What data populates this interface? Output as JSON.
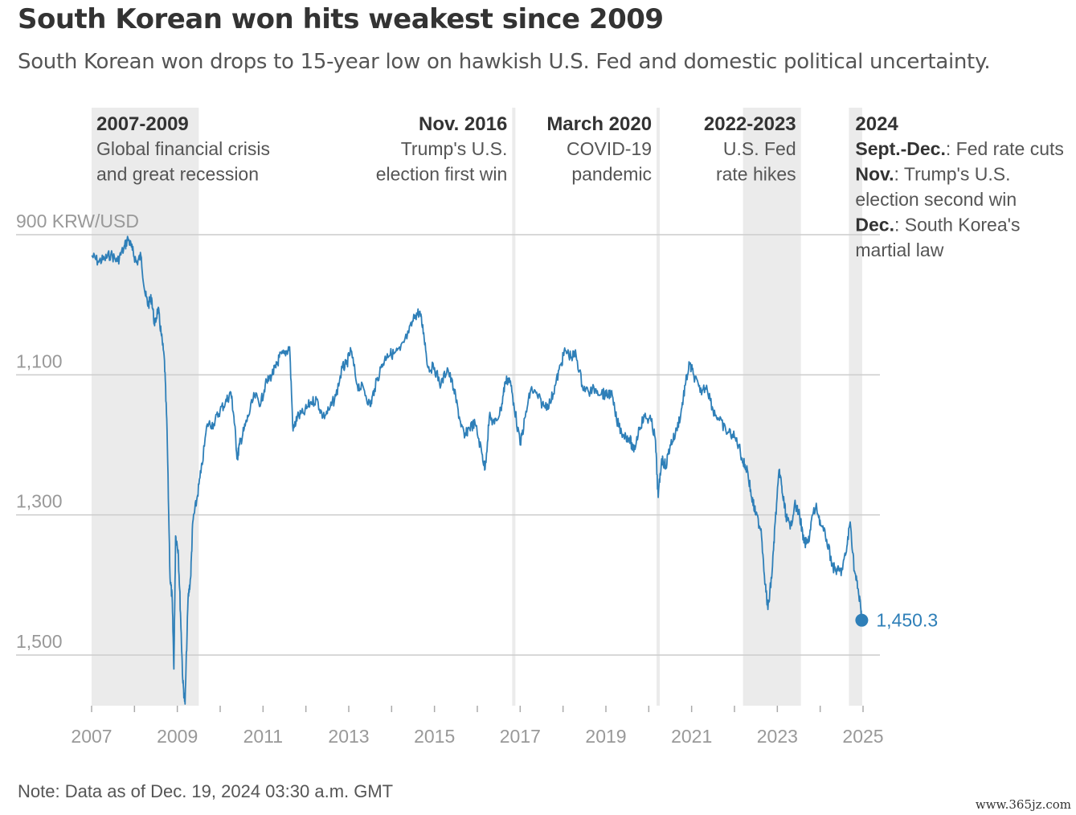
{
  "header": {
    "title": "South Korean won hits weakest since 2009",
    "subtitle": "South Korean won drops to 15-year low on hawkish U.S. Fed and domestic political uncertainty."
  },
  "footer": {
    "note": "Note: Data as of Dec. 19, 2024 03:30 a.m. GMT",
    "watermark": "www.365jz.com"
  },
  "colors": {
    "line": "#2e7fb8",
    "band": "#ebebeb",
    "grid": "#cccccc",
    "axis_text": "#999999",
    "annotation_heading": "#333333",
    "annotation_text": "#555555"
  },
  "chart_data": {
    "type": "line",
    "title": "South Korean won hits weakest since 2009",
    "subtitle": "South Korean won drops to 15-year low on hawkish U.S. Fed and domestic political uncertainty.",
    "ylabel": "KRW/USD",
    "y_axis_inverted": true,
    "ylim": [
      1560,
      860
    ],
    "xlim": [
      2007.0,
      2025.0
    ],
    "y_ticks": [
      {
        "value": 900,
        "label": "900 KRW/USD"
      },
      {
        "value": 1100,
        "label": "1,100"
      },
      {
        "value": 1300,
        "label": "1,300"
      },
      {
        "value": 1500,
        "label": "1,500"
      }
    ],
    "x_ticks": [
      2007,
      2009,
      2011,
      2013,
      2015,
      2017,
      2019,
      2021,
      2023,
      2025
    ],
    "grid": "horizontal",
    "last_value_label": "1,450.3",
    "series": [
      {
        "points": [
          [
            2007.0,
            930
          ],
          [
            2007.15,
            938
          ],
          [
            2007.3,
            935
          ],
          [
            2007.45,
            928
          ],
          [
            2007.6,
            938
          ],
          [
            2007.75,
            920
          ],
          [
            2007.85,
            905
          ],
          [
            2007.95,
            922
          ],
          [
            2008.05,
            940
          ],
          [
            2008.15,
            930
          ],
          [
            2008.25,
            985
          ],
          [
            2008.32,
            1000
          ],
          [
            2008.4,
            990
          ],
          [
            2008.47,
            1030
          ],
          [
            2008.55,
            1005
          ],
          [
            2008.62,
            1040
          ],
          [
            2008.7,
            1080
          ],
          [
            2008.76,
            1180
          ],
          [
            2008.83,
            1390
          ],
          [
            2008.88,
            1420
          ],
          [
            2008.92,
            1520
          ],
          [
            2008.96,
            1330
          ],
          [
            2009.02,
            1350
          ],
          [
            2009.08,
            1450
          ],
          [
            2009.13,
            1540
          ],
          [
            2009.18,
            1570
          ],
          [
            2009.25,
            1420
          ],
          [
            2009.31,
            1390
          ],
          [
            2009.36,
            1310
          ],
          [
            2009.45,
            1280
          ],
          [
            2009.55,
            1240
          ],
          [
            2009.7,
            1170
          ],
          [
            2009.85,
            1170
          ],
          [
            2010.0,
            1150
          ],
          [
            2010.12,
            1140
          ],
          [
            2010.25,
            1125
          ],
          [
            2010.32,
            1160
          ],
          [
            2010.4,
            1220
          ],
          [
            2010.45,
            1200
          ],
          [
            2010.55,
            1180
          ],
          [
            2010.65,
            1160
          ],
          [
            2010.8,
            1130
          ],
          [
            2010.95,
            1140
          ],
          [
            2011.05,
            1115
          ],
          [
            2011.2,
            1100
          ],
          [
            2011.3,
            1090
          ],
          [
            2011.38,
            1075
          ],
          [
            2011.5,
            1070
          ],
          [
            2011.62,
            1060
          ],
          [
            2011.7,
            1180
          ],
          [
            2011.8,
            1160
          ],
          [
            2011.95,
            1155
          ],
          [
            2012.1,
            1140
          ],
          [
            2012.25,
            1135
          ],
          [
            2012.4,
            1160
          ],
          [
            2012.55,
            1150
          ],
          [
            2012.7,
            1130
          ],
          [
            2012.85,
            1090
          ],
          [
            2012.95,
            1085
          ],
          [
            2013.05,
            1065
          ],
          [
            2013.2,
            1115
          ],
          [
            2013.35,
            1120
          ],
          [
            2013.5,
            1145
          ],
          [
            2013.6,
            1120
          ],
          [
            2013.75,
            1090
          ],
          [
            2013.9,
            1070
          ],
          [
            2014.05,
            1070
          ],
          [
            2014.2,
            1065
          ],
          [
            2014.4,
            1040
          ],
          [
            2014.55,
            1015
          ],
          [
            2014.65,
            1010
          ],
          [
            2014.75,
            1040
          ],
          [
            2014.85,
            1090
          ],
          [
            2015.0,
            1090
          ],
          [
            2015.15,
            1115
          ],
          [
            2015.3,
            1090
          ],
          [
            2015.45,
            1120
          ],
          [
            2015.58,
            1160
          ],
          [
            2015.7,
            1190
          ],
          [
            2015.8,
            1175
          ],
          [
            2015.95,
            1170
          ],
          [
            2016.1,
            1210
          ],
          [
            2016.18,
            1235
          ],
          [
            2016.28,
            1160
          ],
          [
            2016.4,
            1170
          ],
          [
            2016.55,
            1150
          ],
          [
            2016.65,
            1110
          ],
          [
            2016.75,
            1105
          ],
          [
            2016.85,
            1140
          ],
          [
            2017.0,
            1200
          ],
          [
            2017.12,
            1160
          ],
          [
            2017.25,
            1120
          ],
          [
            2017.4,
            1130
          ],
          [
            2017.55,
            1145
          ],
          [
            2017.7,
            1140
          ],
          [
            2017.82,
            1115
          ],
          [
            2017.95,
            1085
          ],
          [
            2018.05,
            1065
          ],
          [
            2018.2,
            1075
          ],
          [
            2018.3,
            1070
          ],
          [
            2018.45,
            1115
          ],
          [
            2018.6,
            1125
          ],
          [
            2018.75,
            1120
          ],
          [
            2018.9,
            1125
          ],
          [
            2019.0,
            1130
          ],
          [
            2019.12,
            1125
          ],
          [
            2019.25,
            1165
          ],
          [
            2019.4,
            1185
          ],
          [
            2019.55,
            1190
          ],
          [
            2019.65,
            1210
          ],
          [
            2019.78,
            1175
          ],
          [
            2019.9,
            1160
          ],
          [
            2020.05,
            1165
          ],
          [
            2020.15,
            1190
          ],
          [
            2020.22,
            1275
          ],
          [
            2020.3,
            1220
          ],
          [
            2020.4,
            1230
          ],
          [
            2020.5,
            1200
          ],
          [
            2020.62,
            1185
          ],
          [
            2020.75,
            1155
          ],
          [
            2020.85,
            1115
          ],
          [
            2020.95,
            1085
          ],
          [
            2021.05,
            1100
          ],
          [
            2021.2,
            1125
          ],
          [
            2021.35,
            1115
          ],
          [
            2021.5,
            1150
          ],
          [
            2021.65,
            1165
          ],
          [
            2021.8,
            1180
          ],
          [
            2021.95,
            1185
          ],
          [
            2022.1,
            1200
          ],
          [
            2022.2,
            1225
          ],
          [
            2022.3,
            1235
          ],
          [
            2022.4,
            1275
          ],
          [
            2022.5,
            1300
          ],
          [
            2022.62,
            1320
          ],
          [
            2022.72,
            1400
          ],
          [
            2022.78,
            1435
          ],
          [
            2022.88,
            1380
          ],
          [
            2022.95,
            1310
          ],
          [
            2023.05,
            1235
          ],
          [
            2023.12,
            1270
          ],
          [
            2023.2,
            1300
          ],
          [
            2023.3,
            1320
          ],
          [
            2023.4,
            1285
          ],
          [
            2023.52,
            1300
          ],
          [
            2023.62,
            1340
          ],
          [
            2023.72,
            1340
          ],
          [
            2023.82,
            1300
          ],
          [
            2023.92,
            1290
          ],
          [
            2024.02,
            1315
          ],
          [
            2024.15,
            1335
          ],
          [
            2024.3,
            1375
          ],
          [
            2024.4,
            1380
          ],
          [
            2024.5,
            1380
          ],
          [
            2024.6,
            1355
          ],
          [
            2024.7,
            1310
          ],
          [
            2024.8,
            1380
          ],
          [
            2024.88,
            1405
          ],
          [
            2024.95,
            1435
          ],
          [
            2024.97,
            1450.3
          ]
        ]
      }
    ],
    "shaded_periods": [
      {
        "start": 2007.0,
        "end": 2009.5,
        "heading": "2007-2009",
        "lines": [
          "Global financial crisis",
          "and great recession"
        ]
      },
      {
        "start": 2022.2,
        "end": 2023.55,
        "heading": "2022-2023",
        "lines": [
          "U.S. Fed",
          "rate hikes"
        ]
      },
      {
        "start": 2024.67,
        "end": 2024.98,
        "heading": "2024"
      }
    ],
    "event_lines": [
      {
        "x": 2016.85,
        "heading": "Nov. 2016",
        "lines": [
          "Trump's U.S.",
          "election first win"
        ]
      },
      {
        "x": 2020.22,
        "heading": "March 2020",
        "lines": [
          "COVID-19",
          "pandemic"
        ]
      }
    ],
    "annotation_2024": [
      {
        "bold": "Sept.-Dec.",
        "text": ": Fed rate cuts"
      },
      {
        "bold": "Nov.",
        "text": ": Trump's U.S."
      },
      {
        "bold": "",
        "text": "election second win"
      },
      {
        "bold": "Dec.",
        "text": ": South Korea's"
      },
      {
        "bold": "",
        "text": "martial law"
      }
    ]
  }
}
